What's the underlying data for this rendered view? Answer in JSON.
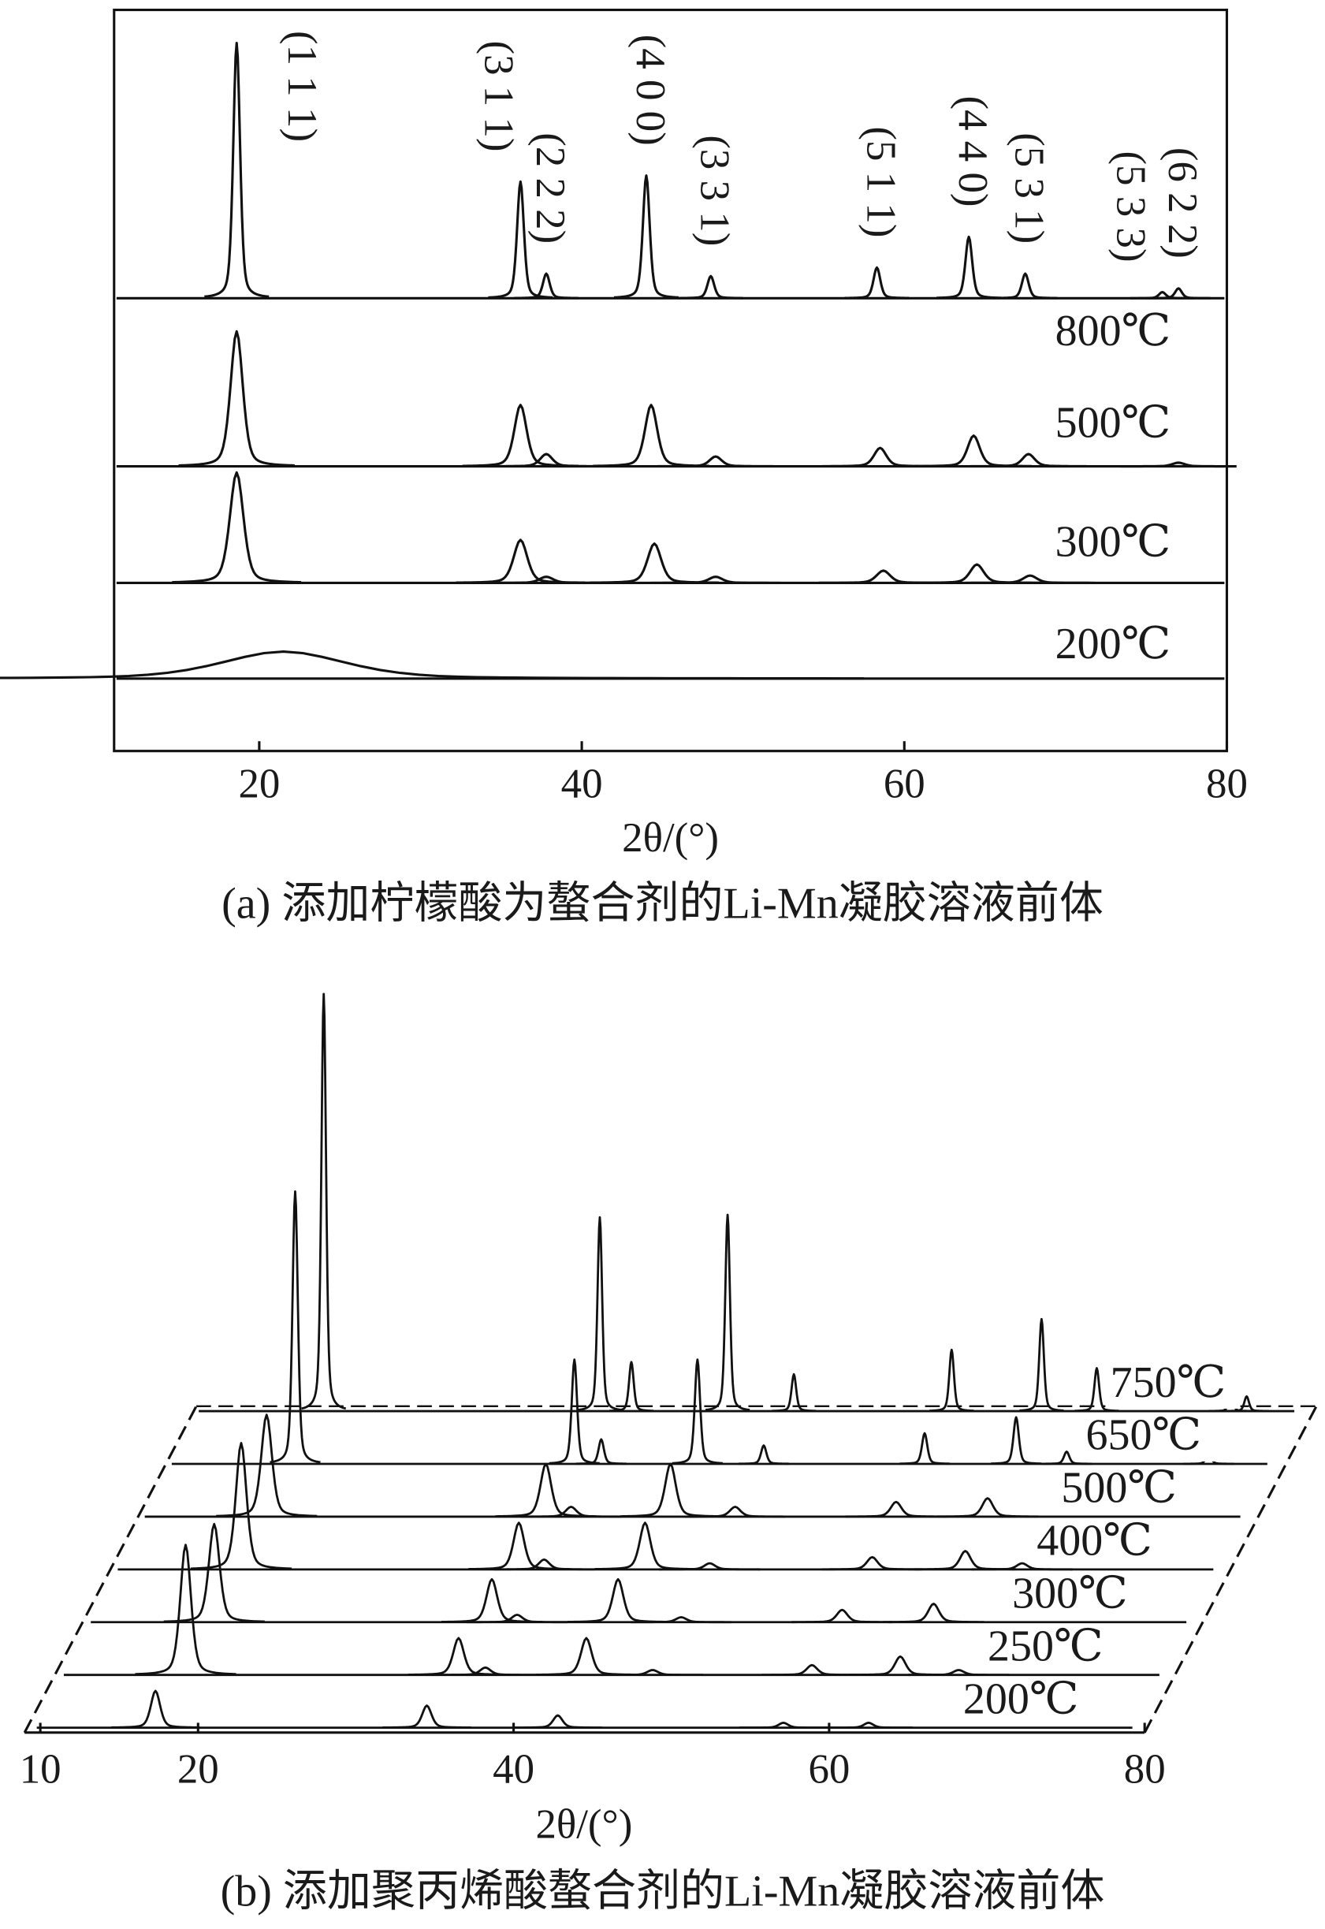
{
  "chart_data": [
    {
      "type": "stack",
      "xlabel": "2θ/(°)",
      "caption": "(a) 添加柠檬酸为螯合剂的Li-Mn凝胶溶液前体",
      "xlim": [
        11,
        80
      ],
      "xticks": [
        20,
        40,
        60,
        80
      ],
      "series": [
        {
          "name": "800℃",
          "fwhm": 0.5,
          "x": [
            18.6,
            36.2,
            37.8,
            44.0,
            48.0,
            58.3,
            64.0,
            67.5,
            76.0,
            77.0
          ],
          "values": [
            208,
            95,
            20,
            100,
            18,
            25,
            50,
            20,
            5,
            8
          ]
        },
        {
          "name": "500℃",
          "fwhm": 0.9,
          "x": [
            18.6,
            36.2,
            37.8,
            44.3,
            48.3,
            58.5,
            64.3,
            67.7,
            77.0
          ],
          "values": [
            110,
            50,
            10,
            50,
            8,
            15,
            25,
            10,
            3
          ]
        },
        {
          "name": "300℃",
          "fwhm": 1.0,
          "x": [
            18.6,
            36.2,
            37.8,
            44.5,
            48.3,
            58.7,
            64.5,
            67.8
          ],
          "values": [
            90,
            35,
            5,
            32,
            5,
            10,
            15,
            6
          ]
        },
        {
          "name": "200℃",
          "fwhm": 9,
          "x": [
            21.5
          ],
          "values": [
            22
          ]
        }
      ],
      "annotations": [
        {
          "text": "(1 1 1)",
          "x": 18.6
        },
        {
          "text": "(3 1 1)",
          "x": 36.2
        },
        {
          "text": "(2 2 2)",
          "x": 37.8
        },
        {
          "text": "(4 0 0)",
          "x": 44.0
        },
        {
          "text": "(3 3 1)",
          "x": 48.0
        },
        {
          "text": "(5 1 1)",
          "x": 58.3
        },
        {
          "text": "(4 4 0)",
          "x": 64.0
        },
        {
          "text": "(5 3 1)",
          "x": 67.5
        },
        {
          "text": "(5 3 3)",
          "x": 76.0
        },
        {
          "text": "(6 2 2)",
          "x": 77.0
        }
      ]
    },
    {
      "type": "waterfall",
      "xlabel": "2θ/(°)",
      "caption": "(b) 添加聚丙烯酸螯合剂的Li-Mn凝胶溶液前体",
      "xlim": [
        9,
        80
      ],
      "xticks": [
        10,
        20,
        40,
        60,
        80
      ],
      "series": [
        {
          "name": "200℃",
          "fwhm": 0.7,
          "x": [
            17.3,
            34.5,
            42.8,
            57.1,
            62.5
          ],
          "values": [
            30,
            18,
            10,
            4,
            4
          ]
        },
        {
          "name": "250℃",
          "fwhm": 0.8,
          "x": [
            17.5,
            34.8,
            36.5,
            42.9,
            47.1,
            57.2,
            62.8,
            66.5
          ],
          "values": [
            106,
            30,
            6,
            30,
            4,
            8,
            15,
            4
          ]
        },
        {
          "name": "300℃",
          "fwhm": 0.8,
          "x": [
            17.6,
            35.2,
            36.8,
            43.2,
            47.2,
            57.4,
            63.2
          ],
          "values": [
            80,
            35,
            6,
            35,
            4,
            10,
            15
          ]
        },
        {
          "name": "400℃",
          "fwhm": 0.8,
          "x": [
            17.6,
            35.2,
            36.8,
            43.2,
            47.3,
            57.6,
            63.5,
            67.1
          ],
          "values": [
            103,
            38,
            8,
            38,
            5,
            10,
            15,
            5
          ]
        },
        {
          "name": "500℃",
          "fwhm": 0.8,
          "x": [
            17.5,
            35.2,
            36.8,
            43.1,
            47.2,
            57.4,
            63.2
          ],
          "values": [
            83,
            43,
            8,
            43,
            8,
            12,
            15
          ]
        },
        {
          "name": "650℃",
          "fwhm": 0.4,
          "x": [
            17.6,
            35.3,
            37.0,
            43.1,
            47.3,
            57.5,
            63.3,
            66.5,
            75.5
          ],
          "values": [
            222,
            85,
            20,
            85,
            15,
            25,
            38,
            10,
            8
          ]
        },
        {
          "name": "750℃",
          "fwhm": 0.35,
          "x": [
            17.7,
            35.2,
            37.2,
            43.3,
            47.5,
            57.5,
            63.2,
            66.7,
            75.2,
            76.2
          ],
          "values": [
            340,
            158,
            40,
            160,
            30,
            50,
            75,
            35,
            12,
            12
          ]
        }
      ]
    }
  ]
}
